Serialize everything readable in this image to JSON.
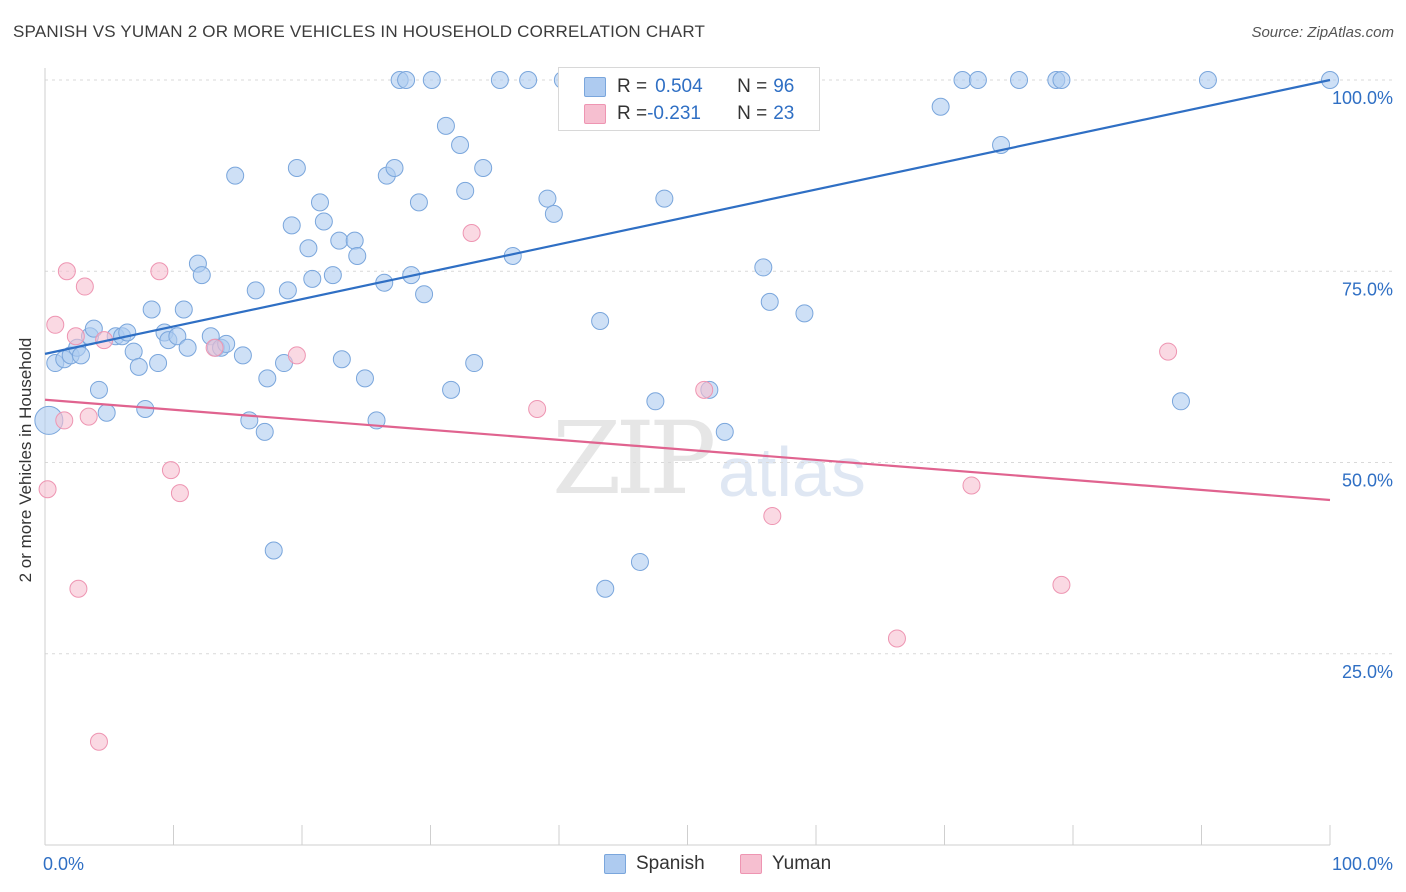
{
  "title": "SPANISH VS YUMAN 2 OR MORE VEHICLES IN HOUSEHOLD CORRELATION CHART",
  "source": "Source: ZipAtlas.com",
  "watermark": {
    "zip": "ZIP",
    "atlas": "atlas"
  },
  "colors": {
    "spanish_fill": "#aecbf0",
    "spanish_stroke": "#7aa6dc",
    "spanish_line": "#2f6fc4",
    "yuman_fill": "#f6bfd0",
    "yuman_stroke": "#ee95b2",
    "yuman_line": "#e0638f",
    "grid": "#d9d9d9",
    "tick_label": "#2f6fc4"
  },
  "legend": {
    "rows": [
      {
        "r_label": "R = ",
        "r_value": "0.504",
        "n_label": "N = ",
        "n_value": "96"
      },
      {
        "r_label": "R = ",
        "r_value": "-0.231",
        "n_label": "N = ",
        "n_value": "23"
      }
    ],
    "bottom": [
      "Spanish",
      "Yuman"
    ]
  },
  "chart_data": {
    "type": "scatter",
    "title": "SPANISH VS YUMAN 2 OR MORE VEHICLES IN HOUSEHOLD CORRELATION CHART",
    "xlabel": "",
    "ylabel": "2 or more Vehicles in Household",
    "xlim": [
      0,
      100
    ],
    "ylim": [
      0,
      100
    ],
    "x_tick_labels": [
      "0.0%",
      "100.0%"
    ],
    "y_tick_labels": [
      "100.0%",
      "75.0%",
      "50.0%",
      "25.0%"
    ],
    "y_ticks": [
      100,
      75,
      50,
      25
    ],
    "grid": true,
    "legend_position": "top-center",
    "series": [
      {
        "name": "Spanish",
        "trend": {
          "x": [
            0,
            100
          ],
          "y": [
            64.2,
            100
          ]
        },
        "points": [
          [
            0.3,
            55.5
          ],
          [
            0.8,
            63
          ],
          [
            1.5,
            63.5
          ],
          [
            2,
            64
          ],
          [
            2.5,
            65
          ],
          [
            2.8,
            64
          ],
          [
            3.5,
            66.5
          ],
          [
            3.8,
            67.5
          ],
          [
            4.2,
            59.5
          ],
          [
            4.8,
            56.5
          ],
          [
            5.5,
            66.5
          ],
          [
            6,
            66.5
          ],
          [
            6.4,
            67
          ],
          [
            6.9,
            64.5
          ],
          [
            7.3,
            62.5
          ],
          [
            7.8,
            57
          ],
          [
            8.3,
            70
          ],
          [
            8.8,
            63
          ],
          [
            9.3,
            67
          ],
          [
            9.6,
            66
          ],
          [
            10.3,
            66.5
          ],
          [
            10.8,
            70
          ],
          [
            11.1,
            65
          ],
          [
            11.9,
            76
          ],
          [
            12.2,
            74.5
          ],
          [
            12.9,
            66.5
          ],
          [
            13.3,
            65
          ],
          [
            13.7,
            65
          ],
          [
            14.1,
            65.5
          ],
          [
            14.8,
            87.5
          ],
          [
            15.4,
            64
          ],
          [
            15.9,
            55.5
          ],
          [
            16.4,
            72.5
          ],
          [
            17.1,
            54
          ],
          [
            17.3,
            61
          ],
          [
            17.8,
            38.5
          ],
          [
            18.6,
            63
          ],
          [
            18.9,
            72.5
          ],
          [
            19.2,
            81
          ],
          [
            19.6,
            88.5
          ],
          [
            20.5,
            78
          ],
          [
            20.8,
            74
          ],
          [
            21.4,
            84
          ],
          [
            21.7,
            81.5
          ],
          [
            22.4,
            74.5
          ],
          [
            22.9,
            79
          ],
          [
            23.1,
            63.5
          ],
          [
            24.1,
            79
          ],
          [
            24.3,
            77
          ],
          [
            24.9,
            61
          ],
          [
            25.8,
            55.5
          ],
          [
            26.4,
            73.5
          ],
          [
            26.6,
            87.5
          ],
          [
            27.2,
            88.5
          ],
          [
            27.6,
            100
          ],
          [
            28.1,
            100
          ],
          [
            28.5,
            74.5
          ],
          [
            29.1,
            84
          ],
          [
            29.5,
            72
          ],
          [
            30.1,
            100
          ],
          [
            31.2,
            94
          ],
          [
            31.6,
            59.5
          ],
          [
            32.3,
            91.5
          ],
          [
            32.7,
            85.5
          ],
          [
            33.4,
            63
          ],
          [
            34.1,
            88.5
          ],
          [
            35.4,
            100
          ],
          [
            36.4,
            77
          ],
          [
            37.6,
            100
          ],
          [
            39.1,
            84.5
          ],
          [
            39.6,
            82.5
          ],
          [
            40.3,
            100
          ],
          [
            43.2,
            68.5
          ],
          [
            43.6,
            33.5
          ],
          [
            45.2,
            95.5
          ],
          [
            46.3,
            37
          ],
          [
            47.5,
            58
          ],
          [
            48.2,
            84.5
          ],
          [
            51.7,
            59.5
          ],
          [
            52.3,
            100
          ],
          [
            52.9,
            54
          ],
          [
            55.5,
            100
          ],
          [
            55.9,
            75.5
          ],
          [
            56.4,
            71
          ],
          [
            59.1,
            69.5
          ],
          [
            69.7,
            96.5
          ],
          [
            71.4,
            100
          ],
          [
            72.6,
            100
          ],
          [
            74.4,
            91.5
          ],
          [
            75.8,
            100
          ],
          [
            78.7,
            100
          ],
          [
            79.1,
            100
          ],
          [
            88.4,
            58
          ],
          [
            90.5,
            100
          ],
          [
            100,
            100
          ],
          [
            56.6,
            100
          ]
        ]
      },
      {
        "name": "Yuman",
        "trend": {
          "x": [
            0,
            100
          ],
          "y": [
            58.2,
            45.1
          ]
        },
        "points": [
          [
            0.2,
            46.5
          ],
          [
            0.8,
            68
          ],
          [
            1.5,
            55.5
          ],
          [
            1.7,
            75
          ],
          [
            2.4,
            66.5
          ],
          [
            2.6,
            33.5
          ],
          [
            3.1,
            73
          ],
          [
            3.4,
            56
          ],
          [
            4.2,
            13.5
          ],
          [
            4.6,
            66
          ],
          [
            8.9,
            75
          ],
          [
            9.8,
            49
          ],
          [
            10.5,
            46
          ],
          [
            13.2,
            65
          ],
          [
            19.6,
            64
          ],
          [
            33.2,
            80
          ],
          [
            38.3,
            57
          ],
          [
            51.3,
            59.5
          ],
          [
            56.6,
            43
          ],
          [
            66.3,
            27
          ],
          [
            72.1,
            47
          ],
          [
            79.1,
            34
          ],
          [
            87.4,
            64.5
          ]
        ]
      }
    ]
  }
}
